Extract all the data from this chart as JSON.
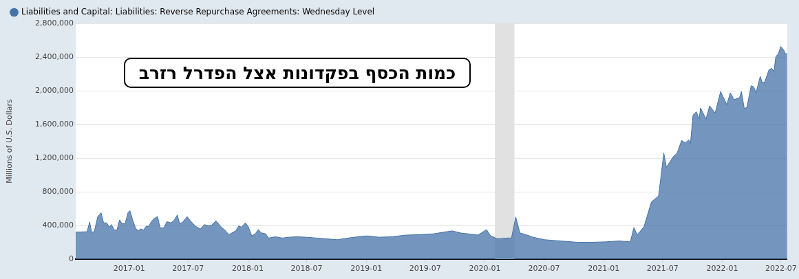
{
  "chart_data": {
    "type": "area",
    "ylabel": "Millions of U.S. Dollars",
    "legend": "top left",
    "grid": "y",
    "annotations": [
      "כמות הכסף בפקדונות אצל הפדרל רזרב"
    ],
    "xlim": [
      "2016-07-20",
      "2022-07-20"
    ],
    "xticks": [
      "2017-01",
      "2017-07",
      "2018-01",
      "2018-07",
      "2019-01",
      "2019-07",
      "2020-01",
      "2020-07",
      "2021-01",
      "2021-07",
      "2022-01",
      "2022-07"
    ],
    "ylim": [
      0,
      2800000
    ],
    "yticks": [
      {
        "value": 0,
        "label": "0"
      },
      {
        "value": 400000,
        "label": "400,000"
      },
      {
        "value": 800000,
        "label": "800,000"
      },
      {
        "value": 1200000,
        "label": "1,200,000"
      },
      {
        "value": 1600000,
        "label": "1,600,000"
      },
      {
        "value": 2000000,
        "label": "2,000,000"
      },
      {
        "value": 2400000,
        "label": "2,400,000"
      },
      {
        "value": 2800000,
        "label": "2,800,000"
      }
    ],
    "bands": [
      {
        "axis": "x",
        "from": "2020-02-01",
        "to": "2020-04-01",
        "color": "#e1e1e1"
      }
    ],
    "series": [
      {
        "name": "Liabilities and Capital: Liabilities: Reverse Repurchase Agreements: Wednesday Level",
        "color": "#4572a7",
        "x": [
          "2016-07-20",
          "2016-08-24",
          "2016-09-01",
          "2016-09-07",
          "2016-09-15",
          "2016-09-26",
          "2016-10-06",
          "2016-10-14",
          "2016-10-23",
          "2016-11-01",
          "2016-11-07",
          "2016-11-16",
          "2016-11-24",
          "2016-12-02",
          "2016-12-10",
          "2016-12-19",
          "2016-12-28",
          "2017-01-03",
          "2017-01-11",
          "2017-01-20",
          "2017-01-28",
          "2017-02-06",
          "2017-02-14",
          "2017-02-23",
          "2017-03-01",
          "2017-03-10",
          "2017-03-18",
          "2017-03-29",
          "2017-04-06",
          "2017-04-17",
          "2017-04-27",
          "2017-05-10",
          "2017-05-20",
          "2017-05-29",
          "2017-06-05",
          "2017-06-15",
          "2017-06-28",
          "2017-07-08",
          "2017-07-23",
          "2017-08-01",
          "2017-08-09",
          "2017-08-20",
          "2017-09-02",
          "2017-09-12",
          "2017-09-25",
          "2017-10-10",
          "2017-10-22",
          "2017-11-04",
          "2017-11-17",
          "2017-11-25",
          "2017-12-04",
          "2017-12-12",
          "2017-12-25",
          "2018-01-03",
          "2018-01-13",
          "2018-01-24",
          "2018-02-02",
          "2018-02-12",
          "2018-02-25",
          "2018-03-06",
          "2018-03-27",
          "2018-04-17",
          "2018-05-08",
          "2018-06-03",
          "2018-06-30",
          "2018-08-01",
          "2018-09-02",
          "2018-10-04",
          "2018-11-05",
          "2018-12-06",
          "2019-01-03",
          "2019-02-09",
          "2019-03-21",
          "2019-05-02",
          "2019-06-14",
          "2019-07-26",
          "2019-09-22",
          "2019-10-19",
          "2019-12-11",
          "2020-01-06",
          "2020-01-19",
          "2020-02-09",
          "2020-03-10",
          "2020-03-23",
          "2020-04-05",
          "2020-04-18",
          "2020-05-07",
          "2020-05-28",
          "2020-07-03",
          "2020-08-21",
          "2020-10-13",
          "2020-11-25",
          "2021-01-06",
          "2021-02-18",
          "2021-03-24",
          "2021-04-04",
          "2021-04-14",
          "2021-05-05",
          "2021-05-28",
          "2021-06-19",
          "2021-07-05",
          "2021-07-13",
          "2021-08-04",
          "2021-08-15",
          "2021-08-29",
          "2021-09-09",
          "2021-09-20",
          "2021-09-25",
          "2021-10-03",
          "2021-10-13",
          "2021-10-22",
          "2021-10-26",
          "2021-11-12",
          "2021-11-23",
          "2021-12-10",
          "2021-12-27",
          "2022-01-15",
          "2022-01-26",
          "2022-02-06",
          "2022-02-23",
          "2022-03-01",
          "2022-03-10",
          "2022-03-18",
          "2022-03-31",
          "2022-04-08",
          "2022-04-15",
          "2022-04-28",
          "2022-05-04",
          "2022-05-12",
          "2022-05-25",
          "2022-06-03",
          "2022-06-09",
          "2022-06-15",
          "2022-06-23",
          "2022-06-30",
          "2022-07-10",
          "2022-07-14",
          "2022-07-20"
        ],
        "values": [
          320000,
          325000,
          440000,
          320000,
          325000,
          505000,
          550000,
          430000,
          430000,
          380000,
          410000,
          345000,
          345000,
          465000,
          420000,
          420000,
          550000,
          575000,
          470000,
          370000,
          335000,
          360000,
          345000,
          395000,
          385000,
          445000,
          480000,
          505000,
          370000,
          370000,
          445000,
          430000,
          465000,
          525000,
          420000,
          440000,
          505000,
          455000,
          395000,
          370000,
          360000,
          410000,
          395000,
          405000,
          455000,
          385000,
          345000,
          290000,
          320000,
          335000,
          395000,
          380000,
          430000,
          380000,
          275000,
          300000,
          350000,
          310000,
          300000,
          250000,
          265000,
          250000,
          260000,
          265000,
          260000,
          250000,
          240000,
          230000,
          250000,
          265000,
          275000,
          260000,
          265000,
          285000,
          290000,
          300000,
          335000,
          310000,
          285000,
          350000,
          275000,
          240000,
          250000,
          250000,
          500000,
          310000,
          290000,
          260000,
          230000,
          215000,
          200000,
          200000,
          205000,
          215000,
          205000,
          375000,
          285000,
          385000,
          680000,
          750000,
          1260000,
          1090000,
          1220000,
          1260000,
          1410000,
          1380000,
          1415000,
          1370000,
          1710000,
          1750000,
          1665000,
          1795000,
          1665000,
          1820000,
          1735000,
          1990000,
          1835000,
          1975000,
          1895000,
          1915000,
          1990000,
          1785000,
          1805000,
          2060000,
          2045000,
          1975000,
          2170000,
          2095000,
          2105000,
          2250000,
          2265000,
          2225000,
          2405000,
          2440000,
          2525000,
          2480000,
          2440000,
          2440000
        ]
      }
    ]
  }
}
